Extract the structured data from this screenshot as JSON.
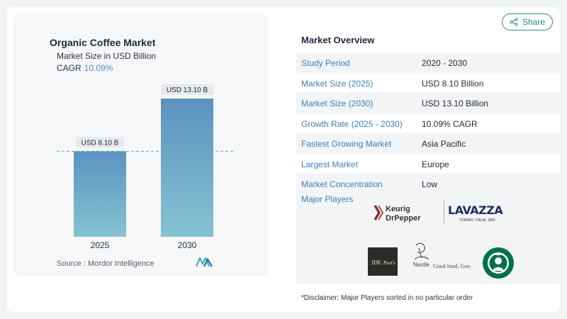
{
  "share": {
    "label": "Share"
  },
  "chart": {
    "title": "Organic Coffee Market",
    "subtitle": "Market Size in USD Billion",
    "cagr_label": "CAGR",
    "cagr_value": "10.09%",
    "source": "Source : Mordor Intelligence"
  },
  "chart_data": {
    "type": "bar",
    "categories": [
      "2025",
      "2030"
    ],
    "values": [
      8.1,
      13.1
    ],
    "data_labels": [
      "USD 8.10 B",
      "USD 13.10 B"
    ],
    "title": "Organic Coffee Market",
    "subtitle": "Market Size in USD Billion",
    "xlabel": "",
    "ylabel": "",
    "ylim": [
      0,
      13.1
    ],
    "grid": false,
    "reference_line_value": 8.1,
    "colors": {
      "bar_top": "#5b93c0",
      "bar_bottom": "#86c3d1",
      "label_bg": "#e7e9ec",
      "dash": "#5aa5bb"
    }
  },
  "overview": {
    "title": "Market Overview",
    "rows": [
      {
        "label": "Study Period",
        "value": "2020 - 2030"
      },
      {
        "label": "Market Size (2025)",
        "value": "USD 8.10 Billion"
      },
      {
        "label": "Market Size (2030)",
        "value": "USD 13.10 Billion"
      },
      {
        "label": "Growth Rate (2025 - 2030)",
        "value": "10.09% CAGR"
      },
      {
        "label": "Fastest Growing Market",
        "value": "Asia Pacific"
      },
      {
        "label": "Largest Market",
        "value": "Europe"
      },
      {
        "label": "Market Concentration",
        "value": "Low"
      }
    ]
  },
  "players": {
    "title": "Major Players",
    "logos": [
      {
        "name": "Keurig Dr Pepper",
        "icon": "keurig-drpepper-logo"
      },
      {
        "name": "Lavazza",
        "icon": "lavazza-logo"
      },
      {
        "name": "JDE Peet's",
        "icon": "jde-peets-logo"
      },
      {
        "name": "Nestlé",
        "icon": "nestle-logo"
      },
      {
        "name": "Starbucks",
        "icon": "starbucks-logo"
      }
    ]
  },
  "disclaimer": "*Disclaimer: Major Players sorted in no particular order"
}
